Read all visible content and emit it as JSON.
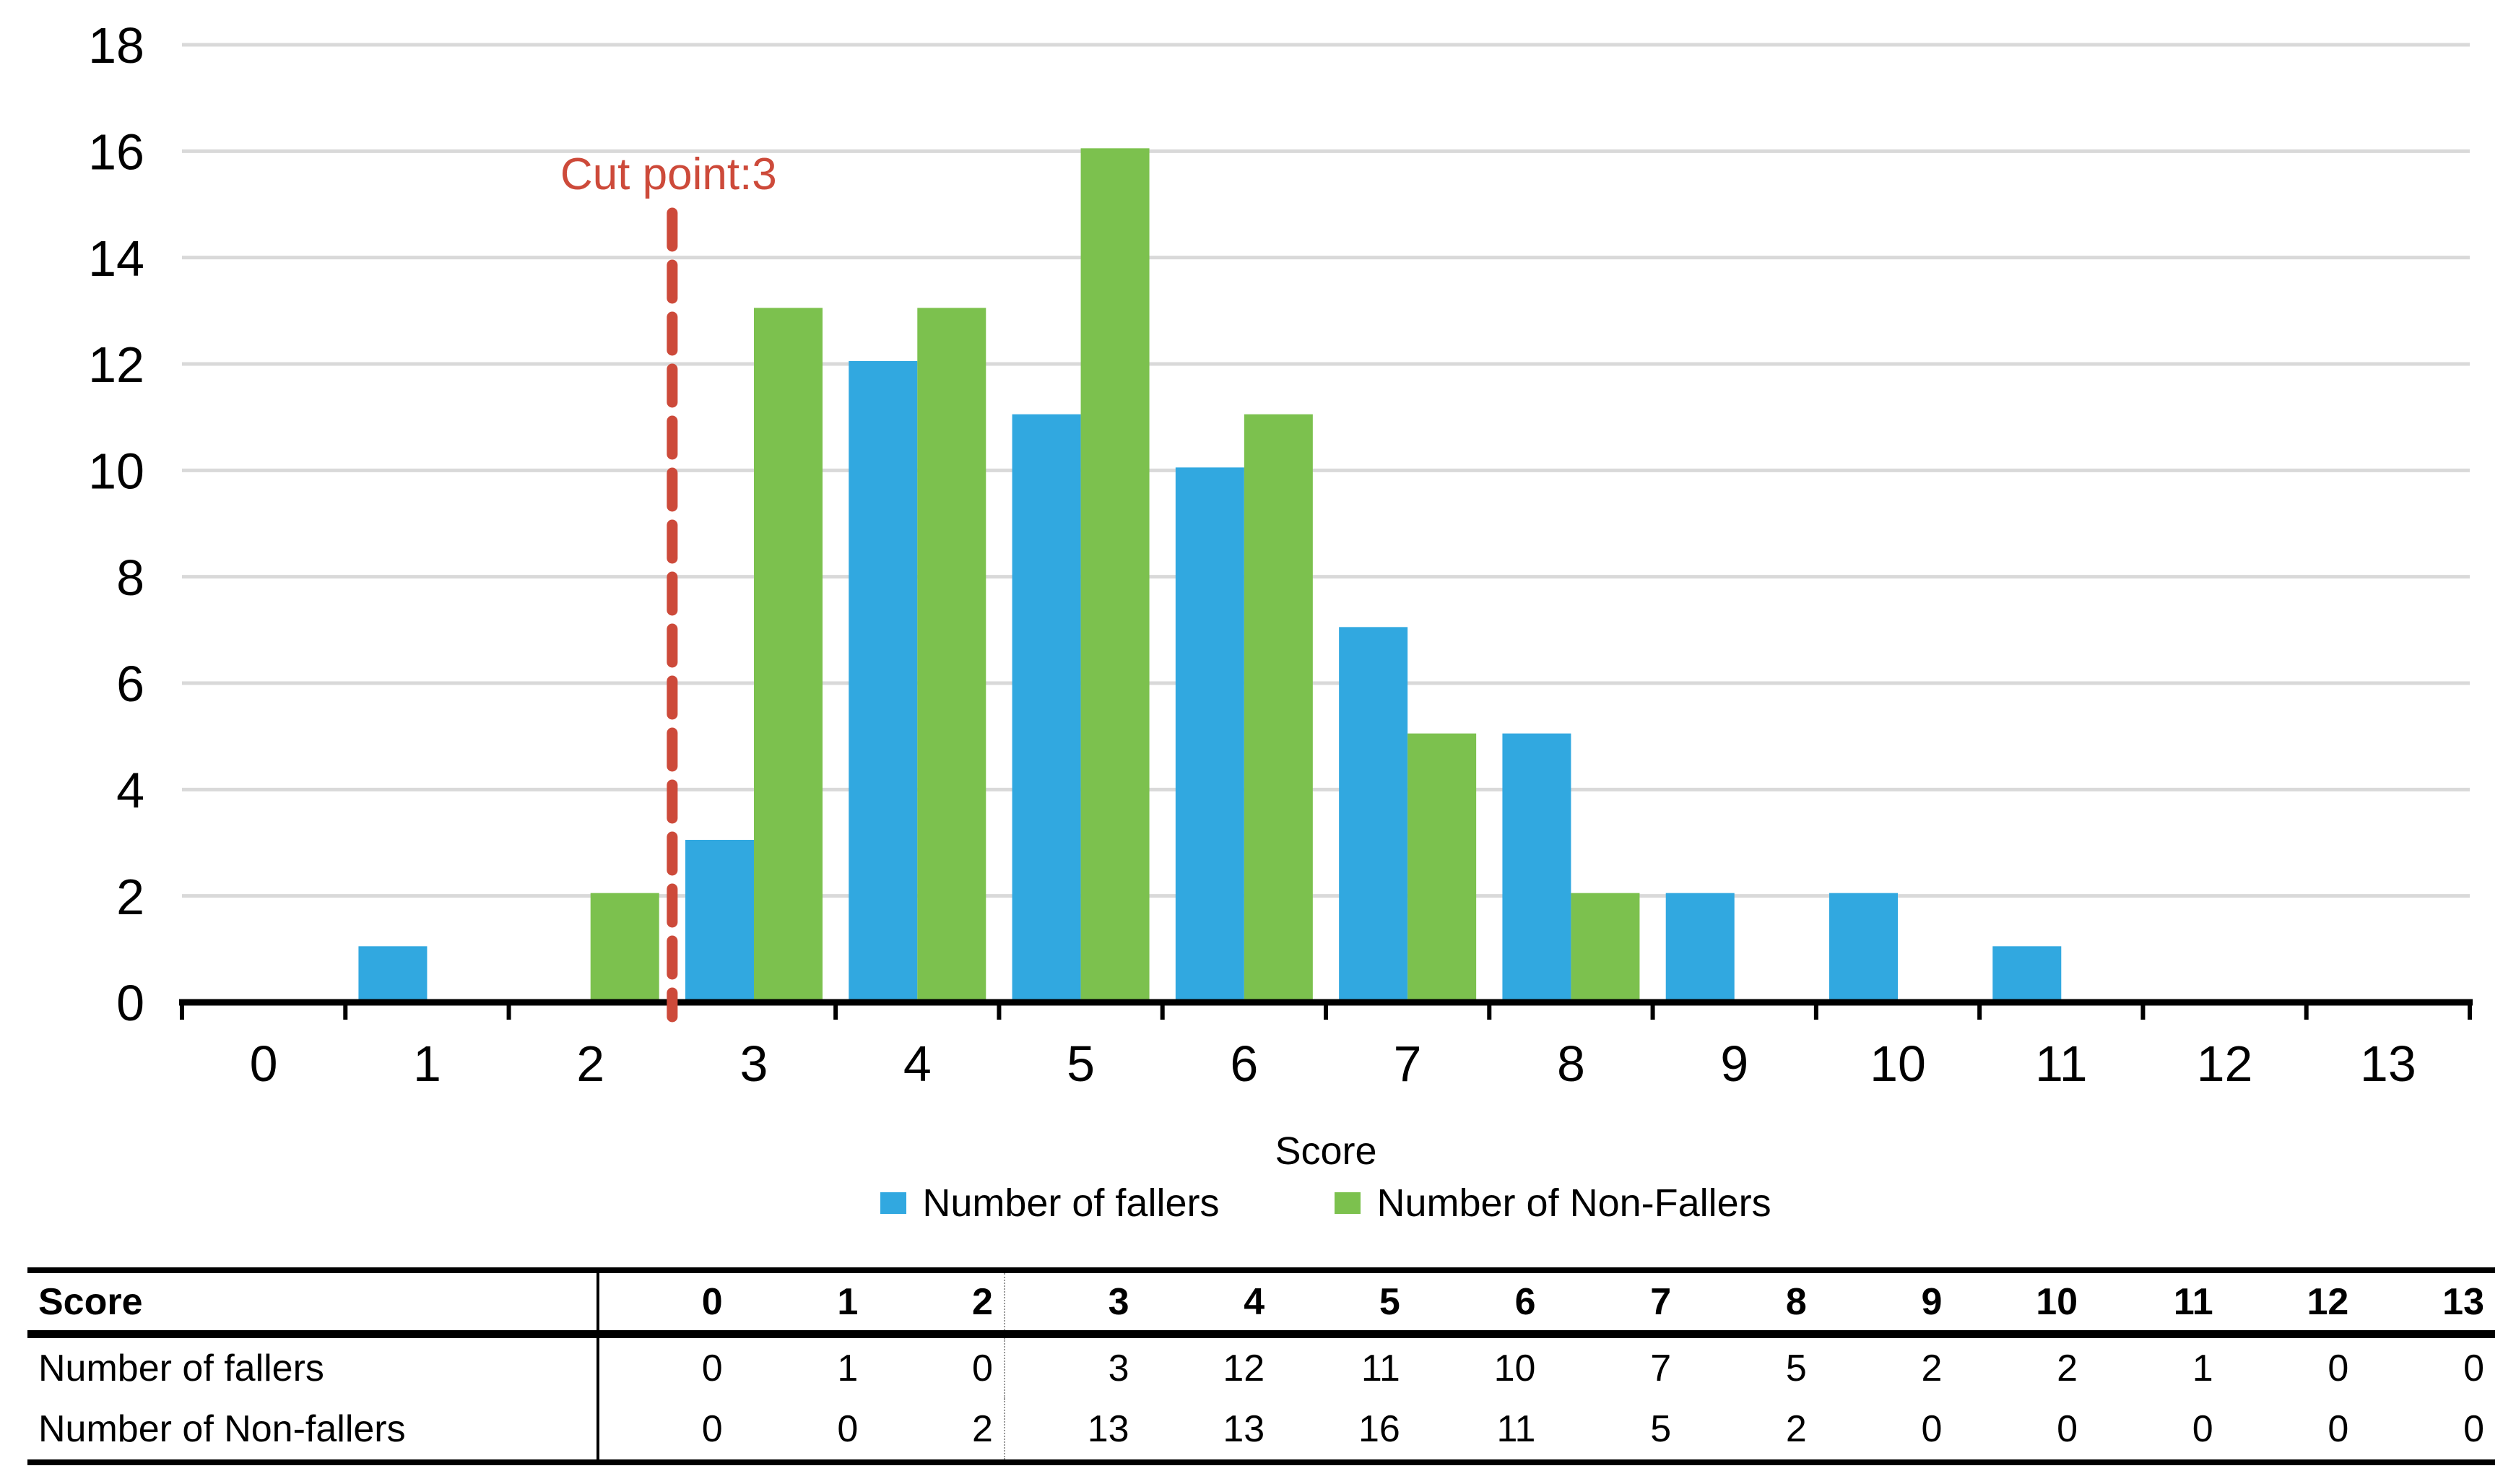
{
  "chart_data": {
    "type": "bar",
    "title": "",
    "categories": [
      "0",
      "1",
      "2",
      "3",
      "4",
      "5",
      "6",
      "7",
      "8",
      "9",
      "10",
      "11",
      "12",
      "13"
    ],
    "series": [
      {
        "name": "Number of fallers",
        "color": "#31A8E0",
        "values": [
          0,
          1,
          0,
          3,
          12,
          11,
          10,
          7,
          5,
          2,
          2,
          1,
          0,
          0
        ]
      },
      {
        "name": "Number of Non-Fallers",
        "color": "#7CC14E",
        "values": [
          0,
          0,
          2,
          13,
          13,
          16,
          11,
          5,
          2,
          0,
          0,
          0,
          0,
          0
        ]
      }
    ],
    "xlabel": "Score",
    "ylabel": "",
    "ylim": [
      0,
      18
    ],
    "ytick_step": 2,
    "grid": true,
    "gridline_color": "#D9D9D9",
    "axis_color": "#000000",
    "legend_position": "bottom",
    "annotation": {
      "label": "Cut point:3",
      "x": 2.5,
      "color": "#CD4A3A",
      "style": "dashed-vertical"
    }
  },
  "legend": {
    "items": [
      {
        "label": "Number of fallers",
        "color": "#31A8E0"
      },
      {
        "label": "Number of Non-Fallers",
        "color": "#7CC14E"
      }
    ]
  },
  "table": {
    "header": {
      "label": "Score",
      "values": [
        "0",
        "1",
        "2",
        "3",
        "4",
        "5",
        "6",
        "7",
        "8",
        "9",
        "10",
        "11",
        "12",
        "13"
      ]
    },
    "rows": [
      {
        "label": "Number of fallers",
        "values": [
          "0",
          "1",
          "0",
          "3",
          "12",
          "11",
          "10",
          "7",
          "5",
          "2",
          "2",
          "1",
          "0",
          "0"
        ]
      },
      {
        "label": "Number of Non-fallers",
        "values": [
          "0",
          "0",
          "2",
          "13",
          "13",
          "16",
          "11",
          "5",
          "2",
          "0",
          "0",
          "0",
          "0",
          "0"
        ]
      }
    ]
  },
  "colors": {
    "fallers": "#31A8E0",
    "non_fallers": "#7CC14E",
    "cut_line": "#CD4A3A",
    "gridline": "#D9D9D9",
    "text": "#000000"
  }
}
